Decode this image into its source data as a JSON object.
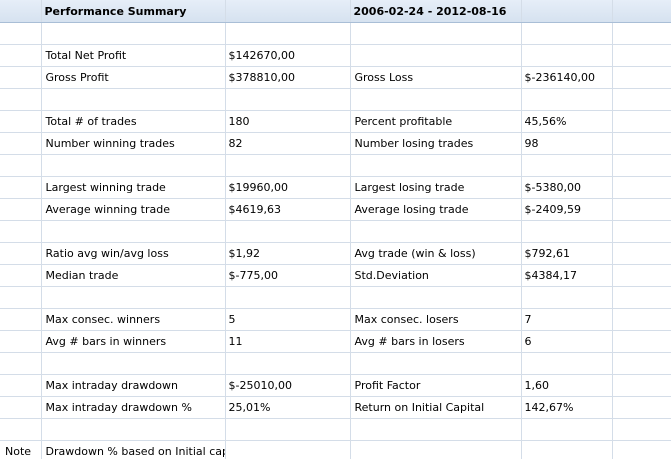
{
  "header": {
    "title": "Performance Summary",
    "date_range": "2006-02-24 - 2012-08-16"
  },
  "rows": [
    {
      "note": "",
      "label": "",
      "value": "",
      "label2": "",
      "value2": ""
    },
    {
      "note": "",
      "label": "Total Net Profit",
      "value": "$142670,00",
      "label2": "",
      "value2": ""
    },
    {
      "note": "",
      "label": "Gross Profit",
      "value": "$378810,00",
      "label2": "Gross Loss",
      "value2": "$-236140,00"
    },
    {
      "note": "",
      "label": "",
      "value": "",
      "label2": "",
      "value2": ""
    },
    {
      "note": "",
      "label": "Total # of trades",
      "value": "180",
      "label2": "Percent profitable",
      "value2": "45,56%"
    },
    {
      "note": "",
      "label": "Number winning trades",
      "value": "82",
      "label2": "Number losing trades",
      "value2": "98"
    },
    {
      "note": "",
      "label": "",
      "value": "",
      "label2": "",
      "value2": ""
    },
    {
      "note": "",
      "label": "Largest winning trade",
      "value": "$19960,00",
      "label2": "Largest losing trade",
      "value2": "$-5380,00"
    },
    {
      "note": "",
      "label": "Average winning trade",
      "value": "$4619,63",
      "label2": "Average losing trade",
      "value2": "$-2409,59"
    },
    {
      "note": "",
      "label": "",
      "value": "",
      "label2": "",
      "value2": ""
    },
    {
      "note": "",
      "label": "Ratio avg win/avg loss",
      "value": "$1,92",
      "label2": "Avg trade (win & loss)",
      "value2": "$792,61"
    },
    {
      "note": "",
      "label": "Median trade",
      "value": "$-775,00",
      "label2": "Std.Deviation",
      "value2": "$4384,17"
    },
    {
      "note": "",
      "label": "",
      "value": "",
      "label2": "",
      "value2": ""
    },
    {
      "note": "",
      "label": "Max consec. winners",
      "value": "5",
      "label2": "Max consec. losers",
      "value2": "7"
    },
    {
      "note": "",
      "label": "Avg # bars in winners",
      "value": "11",
      "label2": "Avg # bars in losers",
      "value2": "6"
    },
    {
      "note": "",
      "label": "",
      "value": "",
      "label2": "",
      "value2": ""
    },
    {
      "note": "",
      "label": "Max intraday drawdown",
      "value": "$-25010,00",
      "label2": "Profit Factor",
      "value2": "1,60"
    },
    {
      "note": "",
      "label": "Max intraday drawdown %",
      "value": "25,01%",
      "label2": "Return on Initial Capital",
      "value2": "142,67%"
    },
    {
      "note": "",
      "label": "",
      "value": "",
      "label2": "",
      "value2": ""
    },
    {
      "note": "Note",
      "label": "Drawdown % based on Initial capital",
      "value": "",
      "label2": "",
      "value2": ""
    }
  ],
  "colors": {
    "header_bg": "#dde7f3",
    "grid_line": "#d4dde8",
    "background": "#ffffff"
  }
}
